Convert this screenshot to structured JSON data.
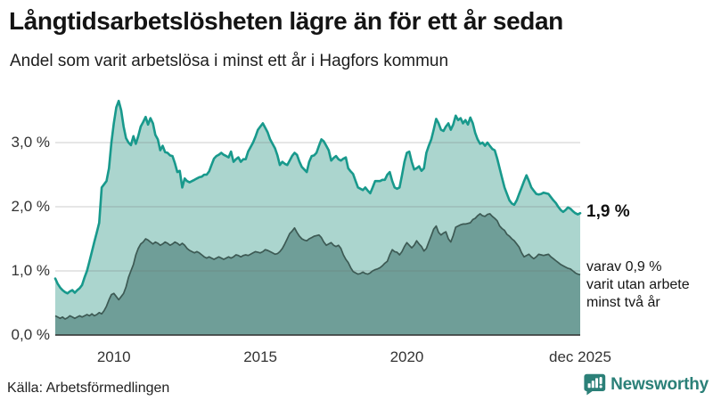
{
  "header": {
    "title": "Långtidsarbetslösheten lägre än för ett år sedan",
    "subtitle": "Andel som varit arbetslösa i minst ett år i Hagfors kommun"
  },
  "annotations": {
    "latest_total_label": "1,9 %",
    "latest_subset_note": "varav 0,9 %\nvarit utan arbete\nminst två år"
  },
  "footer": {
    "source": "Källa: Arbetsförmedlingen",
    "brand": "Newsworthy"
  },
  "colors": {
    "accent_line": "#18998c",
    "accent_fill": "#abd5ce",
    "dark_line": "#3d5a54",
    "dark_fill": "#6f9e98",
    "gridline": "rgba(110,110,110,0.35)",
    "baseline": "#2e2e2e",
    "brand_teal": "#2b8078"
  },
  "chart_data": {
    "type": "area",
    "title": "Långtidsarbetslösheten lägre än för ett år sedan",
    "subtitle": "Andel som varit arbetslösa i minst ett år i Hagfors kommun",
    "unit": "%",
    "x_start": 2008.0,
    "x_end": 2025.917,
    "x_step_months": 1,
    "ylim": [
      0,
      3.8
    ],
    "grid": "horizontal",
    "legend": "none",
    "y_ticks": [
      {
        "value": 0,
        "label": "0,0 %"
      },
      {
        "value": 1,
        "label": "1,0 %"
      },
      {
        "value": 2,
        "label": "2,0 %"
      },
      {
        "value": 3,
        "label": "3,0 %"
      }
    ],
    "x_ticks": [
      {
        "value": 2010,
        "label": "2010"
      },
      {
        "value": 2015,
        "label": "2015"
      },
      {
        "value": 2020,
        "label": "2020"
      },
      {
        "value": 2025.917,
        "label": "dec 2025"
      }
    ],
    "latest": {
      "total": 1.9,
      "subset": 0.9
    },
    "series": [
      {
        "name": "Arbetslösa minst ett år",
        "color": "#18998c",
        "fill": "#abd5ce",
        "values": [
          0.88,
          0.8,
          0.74,
          0.7,
          0.67,
          0.65,
          0.68,
          0.7,
          0.66,
          0.7,
          0.73,
          0.78,
          0.9,
          1.0,
          1.15,
          1.3,
          1.45,
          1.6,
          1.75,
          2.3,
          2.35,
          2.4,
          2.6,
          3.0,
          3.3,
          3.55,
          3.65,
          3.5,
          3.25,
          3.07,
          3.0,
          2.96,
          3.1,
          2.98,
          3.1,
          3.25,
          3.32,
          3.4,
          3.28,
          3.38,
          3.3,
          3.12,
          3.05,
          2.88,
          2.95,
          2.85,
          2.84,
          2.8,
          2.79,
          2.68,
          2.54,
          2.56,
          2.3,
          2.44,
          2.4,
          2.38,
          2.4,
          2.42,
          2.44,
          2.46,
          2.47,
          2.5,
          2.5,
          2.55,
          2.65,
          2.75,
          2.79,
          2.81,
          2.84,
          2.81,
          2.79,
          2.77,
          2.86,
          2.7,
          2.74,
          2.77,
          2.7,
          2.74,
          2.74,
          2.86,
          2.93,
          3.0,
          3.09,
          3.2,
          3.25,
          3.3,
          3.23,
          3.16,
          3.05,
          2.98,
          2.91,
          2.8,
          2.65,
          2.7,
          2.67,
          2.65,
          2.72,
          2.79,
          2.84,
          2.81,
          2.7,
          2.62,
          2.58,
          2.54,
          2.7,
          2.79,
          2.8,
          2.84,
          2.95,
          3.05,
          3.02,
          2.95,
          2.88,
          2.72,
          2.76,
          2.79,
          2.74,
          2.72,
          2.75,
          2.77,
          2.6,
          2.55,
          2.51,
          2.4,
          2.3,
          2.28,
          2.26,
          2.3,
          2.25,
          2.21,
          2.3,
          2.4,
          2.4,
          2.4,
          2.42,
          2.42,
          2.5,
          2.54,
          2.4,
          2.3,
          2.28,
          2.3,
          2.49,
          2.7,
          2.84,
          2.86,
          2.7,
          2.58,
          2.6,
          2.63,
          2.56,
          2.6,
          2.84,
          2.95,
          3.05,
          3.2,
          3.37,
          3.3,
          3.2,
          3.18,
          3.25,
          3.3,
          3.2,
          3.28,
          3.42,
          3.35,
          3.38,
          3.3,
          3.35,
          3.28,
          3.39,
          3.3,
          3.15,
          3.05,
          2.98,
          3.0,
          2.95,
          3.0,
          2.95,
          2.9,
          2.88,
          2.75,
          2.6,
          2.45,
          2.3,
          2.2,
          2.1,
          2.05,
          2.03,
          2.1,
          2.2,
          2.3,
          2.4,
          2.49,
          2.4,
          2.3,
          2.25,
          2.2,
          2.19,
          2.2,
          2.22,
          2.21,
          2.2,
          2.15,
          2.1,
          2.06,
          2.0,
          1.95,
          1.92,
          1.95,
          1.99,
          1.97,
          1.93,
          1.9,
          1.88,
          1.9
        ]
      },
      {
        "name": "varav arbetslösa minst två år",
        "color": "#3d5a54",
        "fill": "#6f9e98",
        "values": [
          0.3,
          0.28,
          0.26,
          0.28,
          0.25,
          0.27,
          0.3,
          0.28,
          0.26,
          0.28,
          0.3,
          0.28,
          0.3,
          0.32,
          0.3,
          0.33,
          0.3,
          0.32,
          0.35,
          0.33,
          0.38,
          0.45,
          0.55,
          0.63,
          0.65,
          0.6,
          0.55,
          0.6,
          0.65,
          0.75,
          0.9,
          1.0,
          1.1,
          1.25,
          1.35,
          1.42,
          1.45,
          1.5,
          1.48,
          1.45,
          1.42,
          1.45,
          1.43,
          1.4,
          1.42,
          1.45,
          1.43,
          1.4,
          1.42,
          1.45,
          1.43,
          1.4,
          1.43,
          1.4,
          1.35,
          1.32,
          1.3,
          1.28,
          1.3,
          1.28,
          1.25,
          1.22,
          1.2,
          1.22,
          1.2,
          1.18,
          1.2,
          1.22,
          1.2,
          1.18,
          1.2,
          1.22,
          1.2,
          1.22,
          1.25,
          1.24,
          1.22,
          1.24,
          1.25,
          1.24,
          1.26,
          1.28,
          1.3,
          1.29,
          1.28,
          1.3,
          1.33,
          1.32,
          1.3,
          1.28,
          1.26,
          1.27,
          1.3,
          1.35,
          1.42,
          1.5,
          1.58,
          1.62,
          1.67,
          1.6,
          1.54,
          1.5,
          1.48,
          1.47,
          1.5,
          1.52,
          1.54,
          1.55,
          1.56,
          1.52,
          1.45,
          1.4,
          1.42,
          1.44,
          1.4,
          1.38,
          1.4,
          1.35,
          1.25,
          1.18,
          1.13,
          1.05,
          0.99,
          0.97,
          0.95,
          0.96,
          0.98,
          0.96,
          0.95,
          0.97,
          1.0,
          1.02,
          1.03,
          1.05,
          1.08,
          1.12,
          1.15,
          1.25,
          1.33,
          1.3,
          1.29,
          1.25,
          1.3,
          1.38,
          1.44,
          1.4,
          1.36,
          1.4,
          1.47,
          1.42,
          1.38,
          1.31,
          1.35,
          1.45,
          1.55,
          1.65,
          1.7,
          1.6,
          1.56,
          1.59,
          1.61,
          1.5,
          1.45,
          1.55,
          1.68,
          1.7,
          1.72,
          1.73,
          1.73,
          1.74,
          1.75,
          1.8,
          1.82,
          1.86,
          1.89,
          1.86,
          1.85,
          1.88,
          1.89,
          1.85,
          1.82,
          1.78,
          1.7,
          1.66,
          1.63,
          1.57,
          1.54,
          1.5,
          1.47,
          1.42,
          1.37,
          1.28,
          1.22,
          1.24,
          1.26,
          1.22,
          1.19,
          1.22,
          1.26,
          1.25,
          1.24,
          1.25,
          1.26,
          1.22,
          1.19,
          1.16,
          1.13,
          1.1,
          1.08,
          1.06,
          1.04,
          1.03,
          1.0,
          0.97,
          0.95,
          0.94
        ]
      }
    ]
  }
}
